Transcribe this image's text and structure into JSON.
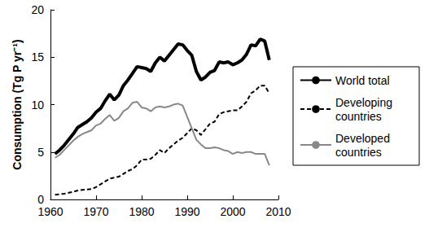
{
  "chart_data": {
    "type": "line",
    "y_label": "Consumption (Tg P yr⁻¹)",
    "x": [
      1961,
      1962,
      1963,
      1964,
      1965,
      1966,
      1967,
      1968,
      1969,
      1970,
      1971,
      1972,
      1973,
      1974,
      1975,
      1976,
      1977,
      1978,
      1979,
      1980,
      1981,
      1982,
      1983,
      1984,
      1985,
      1986,
      1987,
      1988,
      1989,
      1990,
      1991,
      1992,
      1993,
      1994,
      1995,
      1996,
      1997,
      1998,
      1999,
      2000,
      2001,
      2002,
      2003,
      2004,
      2005,
      2006,
      2007,
      2008
    ],
    "series": [
      {
        "name": "World total",
        "color": "#000000",
        "line_style": "solid",
        "values": [
          4.8,
          5.2,
          5.7,
          6.3,
          6.9,
          7.6,
          7.9,
          8.2,
          8.6,
          9.2,
          9.6,
          10.4,
          11.1,
          10.5,
          11.0,
          12.0,
          12.6,
          13.3,
          14.0,
          13.9,
          13.8,
          13.5,
          14.4,
          15.0,
          14.6,
          15.2,
          15.8,
          16.4,
          16.3,
          15.7,
          15.2,
          13.5,
          12.6,
          12.9,
          13.4,
          13.6,
          14.5,
          14.4,
          14.5,
          14.2,
          14.4,
          14.7,
          15.3,
          16.3,
          16.2,
          16.9,
          16.7,
          14.7
        ]
      },
      {
        "name": "Developing countries",
        "color": "#000000",
        "line_style": "dashed",
        "values": [
          0.5,
          0.55,
          0.6,
          0.7,
          0.8,
          0.95,
          1.0,
          1.05,
          1.1,
          1.3,
          1.6,
          1.9,
          2.2,
          2.3,
          2.4,
          2.7,
          3.0,
          3.2,
          3.6,
          4.2,
          4.2,
          4.3,
          4.7,
          5.2,
          4.9,
          5.4,
          5.8,
          6.2,
          6.5,
          7.0,
          7.5,
          7.3,
          6.8,
          7.4,
          8.0,
          8.2,
          9.0,
          9.2,
          9.3,
          9.4,
          9.4,
          9.8,
          10.3,
          11.2,
          11.5,
          12.0,
          12.0,
          11.2
        ]
      },
      {
        "name": "Developed countries",
        "color": "#888888",
        "line_style": "solid",
        "values": [
          4.4,
          4.7,
          5.2,
          5.7,
          6.2,
          6.6,
          6.9,
          7.1,
          7.3,
          7.8,
          8.0,
          8.5,
          8.9,
          8.3,
          8.6,
          9.3,
          9.6,
          10.2,
          10.3,
          9.7,
          9.6,
          9.3,
          9.7,
          9.8,
          9.7,
          9.8,
          10.0,
          10.1,
          9.9,
          8.7,
          7.5,
          6.3,
          5.8,
          5.4,
          5.4,
          5.5,
          5.4,
          5.2,
          5.1,
          4.8,
          5.0,
          4.9,
          5.0,
          5.0,
          4.8,
          4.8,
          4.8,
          3.6
        ]
      }
    ],
    "xlim": [
      1960,
      2010
    ],
    "xticks": [
      1960,
      1970,
      1980,
      1990,
      2000,
      2010
    ],
    "ylim": [
      0,
      20
    ],
    "yticks": [
      0,
      5,
      10,
      15,
      20
    ],
    "grid": false,
    "legend": "right"
  }
}
